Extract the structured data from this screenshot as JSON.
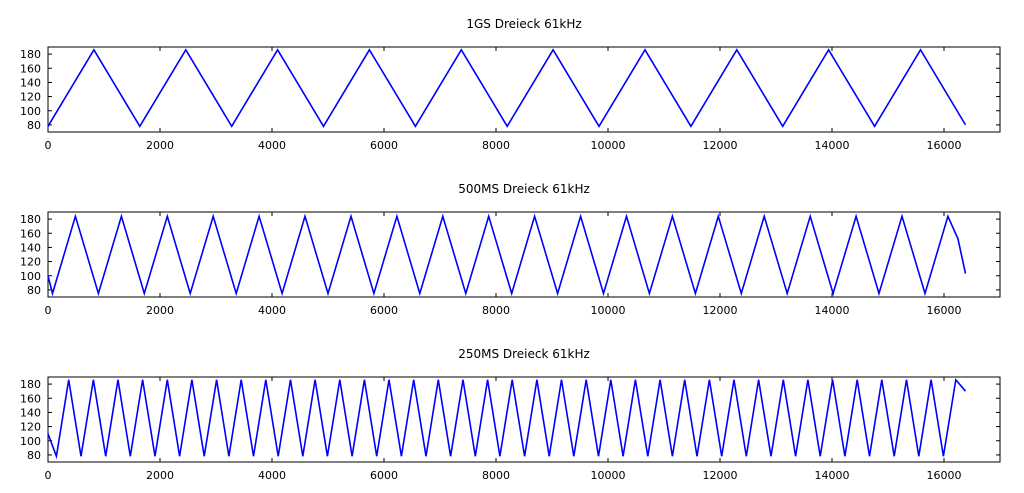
{
  "figure": {
    "background": "#ffffff",
    "line_color": "#0000ff"
  },
  "chart_data": [
    {
      "type": "line",
      "title": "1GS Dreieck 61kHz",
      "xlabel": "",
      "ylabel": "",
      "xlim": [
        0,
        17000
      ],
      "ylim": [
        70,
        190
      ],
      "xticks": [
        0,
        2000,
        4000,
        6000,
        8000,
        10000,
        12000,
        14000,
        16000
      ],
      "yticks": [
        80,
        100,
        120,
        140,
        160,
        180
      ],
      "grid": false,
      "series": [
        {
          "color": "#0000ff",
          "x": [
            0,
            820,
            1640,
            2460,
            3280,
            4100,
            4920,
            5740,
            6560,
            7380,
            8200,
            9020,
            9840,
            10660,
            11480,
            12300,
            13120,
            13940,
            14760,
            15580,
            16384
          ],
          "y": [
            78,
            186,
            78,
            186,
            78,
            186,
            78,
            186,
            78,
            186,
            78,
            186,
            78,
            186,
            78,
            186,
            78,
            186,
            78,
            186,
            80
          ]
        }
      ]
    },
    {
      "type": "line",
      "title": "500MS Dreieck 61kHz",
      "xlabel": "",
      "ylabel": "",
      "xlim": [
        0,
        17000
      ],
      "ylim": [
        70,
        190
      ],
      "xticks": [
        0,
        2000,
        4000,
        6000,
        8000,
        10000,
        12000,
        14000,
        16000
      ],
      "yticks": [
        80,
        100,
        120,
        140,
        160,
        180
      ],
      "grid": false,
      "series": [
        {
          "color": "#0000ff",
          "x": [
            0,
            80,
            490,
            900,
            1310,
            1720,
            2130,
            2540,
            2950,
            3360,
            3770,
            4180,
            4590,
            5000,
            5410,
            5820,
            6230,
            6640,
            7050,
            7460,
            7870,
            8280,
            8690,
            9100,
            9510,
            9920,
            10330,
            10740,
            11150,
            11560,
            11970,
            12380,
            12790,
            13200,
            13610,
            14020,
            14430,
            14840,
            15250,
            15660,
            16070,
            16250,
            16384
          ],
          "y": [
            100,
            75,
            184,
            75,
            184,
            75,
            184,
            75,
            184,
            75,
            184,
            75,
            184,
            75,
            184,
            75,
            184,
            75,
            184,
            75,
            184,
            75,
            184,
            75,
            184,
            75,
            184,
            75,
            184,
            75,
            184,
            75,
            184,
            75,
            184,
            75,
            184,
            75,
            184,
            75,
            184,
            152,
            103
          ]
        }
      ]
    },
    {
      "type": "line",
      "title": "250MS Dreieck 61kHz",
      "xlabel": "",
      "ylabel": "",
      "xlim": [
        0,
        17000
      ],
      "ylim": [
        70,
        190
      ],
      "xticks": [
        0,
        2000,
        4000,
        6000,
        8000,
        10000,
        12000,
        14000,
        16000
      ],
      "yticks": [
        80,
        100,
        120,
        140,
        160,
        180
      ],
      "grid": false,
      "series": [
        {
          "color": "#0000ff",
          "x": [
            0,
            150,
            370,
            590,
            810,
            1030,
            1250,
            1470,
            1690,
            1910,
            2130,
            2350,
            2570,
            2790,
            3010,
            3230,
            3450,
            3670,
            3890,
            4110,
            4330,
            4550,
            4770,
            4990,
            5210,
            5430,
            5650,
            5870,
            6090,
            6310,
            6530,
            6750,
            6970,
            7190,
            7410,
            7630,
            7850,
            8070,
            8290,
            8510,
            8730,
            8950,
            9170,
            9390,
            9610,
            9830,
            10050,
            10270,
            10490,
            10710,
            10930,
            11150,
            11370,
            11590,
            11810,
            12030,
            12250,
            12470,
            12690,
            12910,
            13130,
            13350,
            13570,
            13790,
            14010,
            14230,
            14450,
            14670,
            14890,
            15110,
            15330,
            15550,
            15770,
            15990,
            16210,
            16384
          ],
          "y": [
            110,
            78,
            186,
            78,
            186,
            78,
            186,
            78,
            186,
            78,
            186,
            78,
            186,
            78,
            186,
            78,
            186,
            78,
            186,
            78,
            186,
            78,
            186,
            78,
            186,
            78,
            186,
            78,
            186,
            78,
            186,
            78,
            186,
            78,
            186,
            78,
            186,
            78,
            186,
            78,
            186,
            78,
            186,
            78,
            186,
            78,
            186,
            78,
            186,
            78,
            186,
            78,
            186,
            78,
            186,
            78,
            186,
            78,
            186,
            78,
            186,
            78,
            186,
            78,
            186,
            78,
            186,
            78,
            186,
            78,
            186,
            78,
            186,
            78,
            186,
            170
          ]
        }
      ]
    }
  ]
}
